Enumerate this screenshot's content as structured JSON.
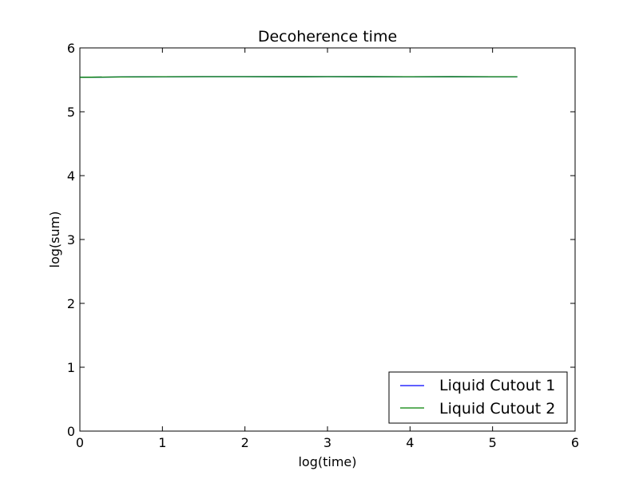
{
  "chart_data": {
    "type": "line",
    "title": "Decoherence time",
    "xlabel": "log(time)",
    "ylabel": "log(sum)",
    "xlim": [
      0,
      6
    ],
    "ylim": [
      0,
      6
    ],
    "xticks": [
      0,
      1,
      2,
      3,
      4,
      5,
      6
    ],
    "yticks": [
      0,
      1,
      2,
      3,
      4,
      5,
      6
    ],
    "xtick_labels": [
      "0",
      "1",
      "2",
      "3",
      "4",
      "5",
      "6"
    ],
    "ytick_labels": [
      "0",
      "1",
      "2",
      "3",
      "4",
      "5",
      "6"
    ],
    "grid": false,
    "legend_position": "lower-right",
    "series": [
      {
        "name": "Liquid Cutout 1",
        "color": "#0000ff",
        "x": [
          0,
          0.5,
          1,
          1.5,
          2,
          2.5,
          3,
          3.5,
          4,
          4.5,
          5,
          5.3
        ],
        "y": [
          5.54,
          5.545,
          5.548,
          5.55,
          5.55,
          5.549,
          5.55,
          5.549,
          5.548,
          5.549,
          5.548,
          5.548
        ]
      },
      {
        "name": "Liquid Cutout 2",
        "color": "#008000",
        "x": [
          0,
          0.5,
          1,
          1.5,
          2,
          2.5,
          3,
          3.5,
          4,
          4.5,
          5,
          5.3
        ],
        "y": [
          5.54,
          5.545,
          5.548,
          5.55,
          5.55,
          5.549,
          5.55,
          5.549,
          5.548,
          5.549,
          5.548,
          5.548
        ]
      }
    ]
  }
}
